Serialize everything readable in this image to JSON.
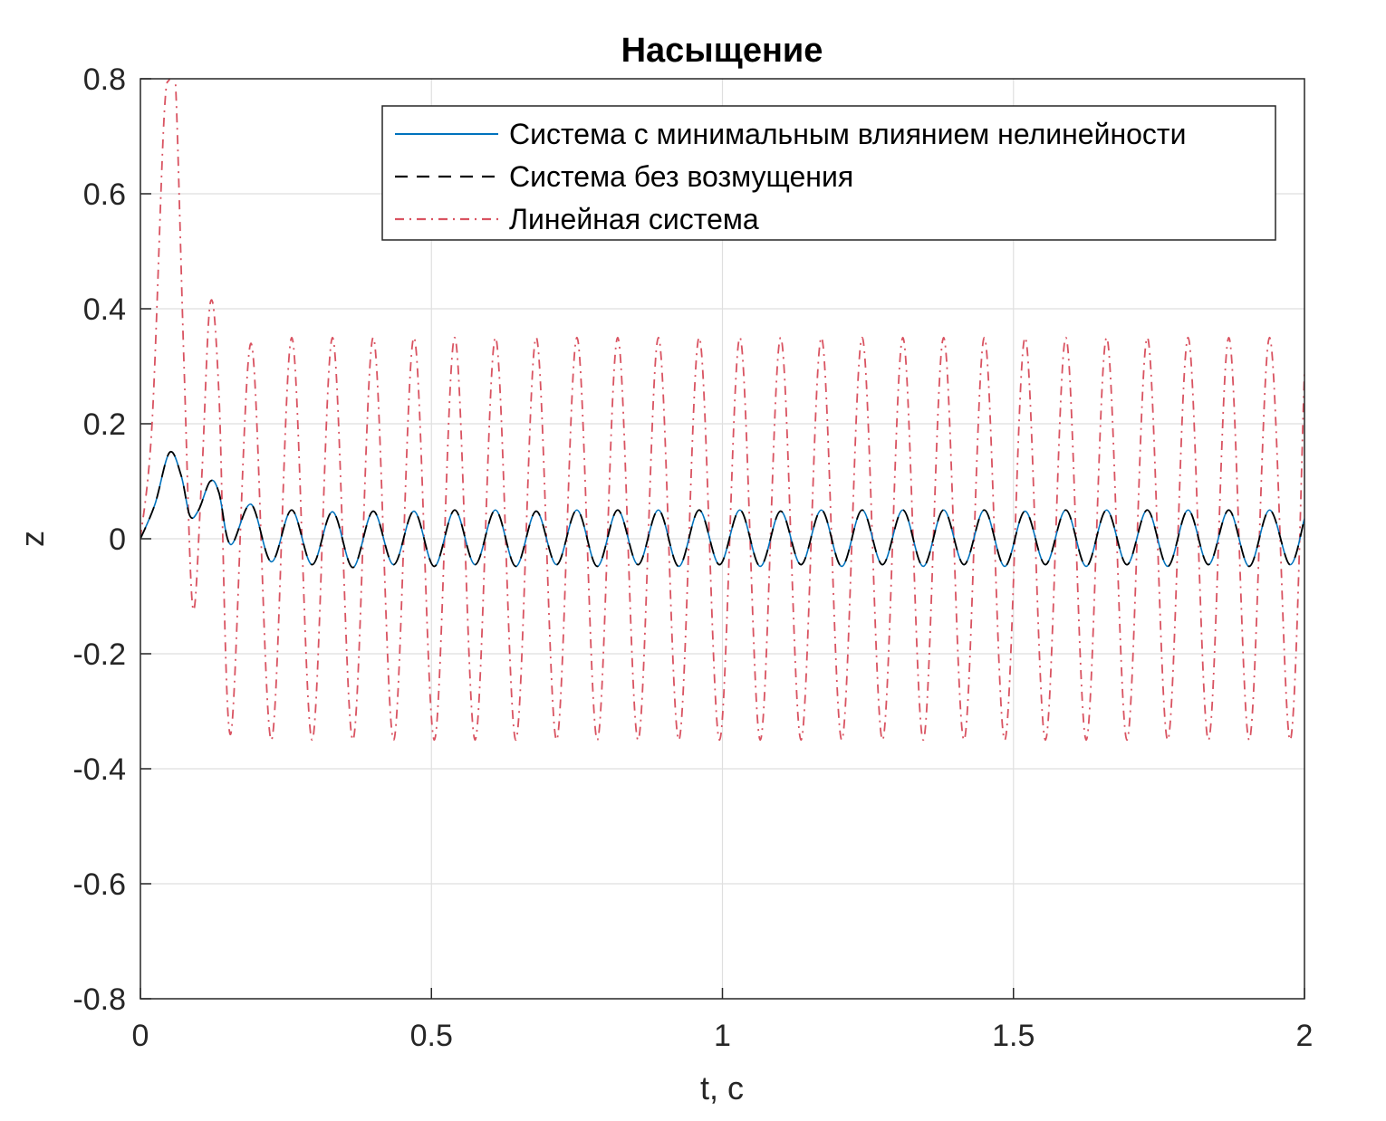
{
  "chart_data": {
    "type": "line",
    "title": "Насыщение",
    "xlabel": "t, с",
    "ylabel": "z",
    "xlim": [
      0,
      2
    ],
    "ylim": [
      -0.8,
      0.8
    ],
    "xticks": [
      0,
      0.5,
      1,
      1.5,
      2
    ],
    "xtick_labels": [
      "0",
      "0.5",
      "1",
      "1.5",
      "2"
    ],
    "yticks": [
      -0.8,
      -0.6,
      -0.4,
      -0.2,
      0,
      0.2,
      0.4,
      0.6,
      0.8
    ],
    "ytick_labels": [
      "-0.8",
      "-0.6",
      "-0.4",
      "-0.2",
      "0",
      "0.2",
      "0.4",
      "0.6",
      "0.8"
    ],
    "grid": true,
    "legend_position": "top-right",
    "series": [
      {
        "name": "Система с минимальным влиянием нелинейности",
        "color": "#0072BD",
        "style": "solid",
        "x": [
          0,
          0.025,
          0.05,
          0.07,
          0.085,
          0.1,
          0.12,
          0.135,
          0.155,
          0.19,
          0.225,
          0.26,
          0.295,
          0.33,
          0.365,
          0.4,
          0.435,
          0.47,
          0.505,
          0.54,
          0.575,
          0.61,
          0.645,
          0.68,
          0.715,
          0.75,
          0.785,
          0.82,
          0.855,
          0.89,
          0.925,
          0.96,
          0.995,
          1.03,
          1.065,
          1.1,
          1.135,
          1.17,
          1.205,
          1.24,
          1.275,
          1.31,
          1.345,
          1.38,
          1.415,
          1.45,
          1.485,
          1.52,
          1.555,
          1.59,
          1.625,
          1.66,
          1.695,
          1.73,
          1.765,
          1.8,
          1.835,
          1.87,
          1.905,
          1.94,
          1.975,
          2.0
        ],
        "y": [
          0,
          0.06,
          0.15,
          0.11,
          0.04,
          0.05,
          0.1,
          0.08,
          -0.01,
          0.06,
          -0.04,
          0.05,
          -0.045,
          0.047,
          -0.05,
          0.048,
          -0.045,
          0.048,
          -0.048,
          0.05,
          -0.045,
          0.05,
          -0.048,
          0.048,
          -0.045,
          0.05,
          -0.048,
          0.05,
          -0.045,
          0.05,
          -0.048,
          0.05,
          -0.045,
          0.05,
          -0.048,
          0.048,
          -0.045,
          0.05,
          -0.048,
          0.05,
          -0.045,
          0.05,
          -0.048,
          0.05,
          -0.045,
          0.05,
          -0.048,
          0.048,
          -0.045,
          0.05,
          -0.048,
          0.05,
          -0.045,
          0.05,
          -0.048,
          0.05,
          -0.045,
          0.05,
          -0.048,
          0.05,
          -0.045,
          0.035
        ]
      },
      {
        "name": "Система без возмущения",
        "color": "#000000",
        "style": "dashed",
        "x": [
          0,
          0.025,
          0.05,
          0.07,
          0.085,
          0.1,
          0.12,
          0.135,
          0.155,
          0.19,
          0.225,
          0.26,
          0.295,
          0.33,
          0.365,
          0.4,
          0.435,
          0.47,
          0.505,
          0.54,
          0.575,
          0.61,
          0.645,
          0.68,
          0.715,
          0.75,
          0.785,
          0.82,
          0.855,
          0.89,
          0.925,
          0.96,
          0.995,
          1.03,
          1.065,
          1.1,
          1.135,
          1.17,
          1.205,
          1.24,
          1.275,
          1.31,
          1.345,
          1.38,
          1.415,
          1.45,
          1.485,
          1.52,
          1.555,
          1.59,
          1.625,
          1.66,
          1.695,
          1.73,
          1.765,
          1.8,
          1.835,
          1.87,
          1.905,
          1.94,
          1.975,
          2.0
        ],
        "y": [
          0,
          0.06,
          0.15,
          0.11,
          0.04,
          0.05,
          0.1,
          0.08,
          -0.01,
          0.06,
          -0.04,
          0.05,
          -0.045,
          0.047,
          -0.05,
          0.048,
          -0.045,
          0.048,
          -0.048,
          0.05,
          -0.045,
          0.05,
          -0.048,
          0.048,
          -0.045,
          0.05,
          -0.048,
          0.05,
          -0.045,
          0.05,
          -0.048,
          0.05,
          -0.045,
          0.05,
          -0.048,
          0.048,
          -0.045,
          0.05,
          -0.048,
          0.05,
          -0.045,
          0.05,
          -0.048,
          0.05,
          -0.045,
          0.05,
          -0.048,
          0.048,
          -0.045,
          0.05,
          -0.048,
          0.05,
          -0.045,
          0.05,
          -0.048,
          0.05,
          -0.045,
          0.05,
          -0.048,
          0.05,
          -0.045,
          0.035
        ]
      },
      {
        "name": "Линейная система",
        "color": "#D95361",
        "style": "dashdot",
        "x": [
          0,
          0.02,
          0.04,
          0.05,
          0.06,
          0.075,
          0.09,
          0.105,
          0.12,
          0.135,
          0.155,
          0.19,
          0.225,
          0.26,
          0.295,
          0.33,
          0.365,
          0.4,
          0.435,
          0.47,
          0.505,
          0.54,
          0.575,
          0.61,
          0.645,
          0.68,
          0.715,
          0.75,
          0.785,
          0.82,
          0.855,
          0.89,
          0.925,
          0.96,
          0.995,
          1.03,
          1.065,
          1.1,
          1.135,
          1.17,
          1.205,
          1.24,
          1.275,
          1.31,
          1.345,
          1.38,
          1.415,
          1.45,
          1.485,
          1.52,
          1.555,
          1.59,
          1.625,
          1.66,
          1.695,
          1.73,
          1.765,
          1.8,
          1.835,
          1.87,
          1.905,
          1.94,
          1.975,
          2.0
        ],
        "y": [
          0,
          0.2,
          0.72,
          0.8,
          0.8,
          0.3,
          -0.12,
          0.1,
          0.41,
          0.25,
          -0.34,
          0.34,
          -0.35,
          0.35,
          -0.35,
          0.35,
          -0.35,
          0.35,
          -0.35,
          0.35,
          -0.35,
          0.35,
          -0.35,
          0.35,
          -0.35,
          0.35,
          -0.35,
          0.35,
          -0.35,
          0.35,
          -0.35,
          0.35,
          -0.35,
          0.35,
          -0.35,
          0.35,
          -0.35,
          0.35,
          -0.35,
          0.35,
          -0.35,
          0.35,
          -0.35,
          0.35,
          -0.35,
          0.35,
          -0.35,
          0.35,
          -0.35,
          0.35,
          -0.35,
          0.35,
          -0.35,
          0.35,
          -0.35,
          0.35,
          -0.35,
          0.35,
          -0.35,
          0.35,
          -0.35,
          0.35,
          -0.35,
          0.29
        ]
      }
    ]
  }
}
